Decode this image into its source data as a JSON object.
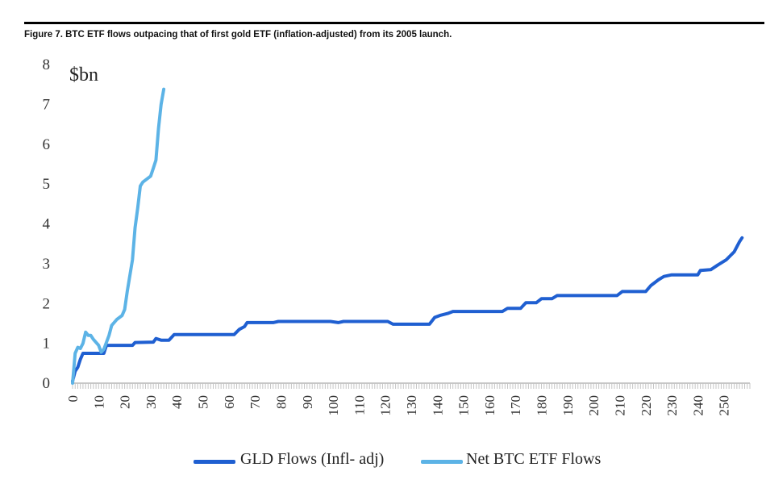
{
  "chart_data": {
    "type": "line",
    "title": "Figure 7. BTC ETF flows outpacing that of first gold ETF (inflation-adjusted) from its 2005 launch.",
    "unit_label": "$bn",
    "ylim": [
      0,
      8
    ],
    "yticks": [
      "0",
      "1",
      "2",
      "3",
      "4",
      "5",
      "6",
      "7",
      "8"
    ],
    "xlim": [
      0,
      260
    ],
    "xticks": [
      "0",
      "10",
      "20",
      "30",
      "40",
      "50",
      "60",
      "70",
      "80",
      "90",
      "100",
      "110",
      "120",
      "130",
      "140",
      "150",
      "160",
      "170",
      "180",
      "190",
      "200",
      "210",
      "220",
      "230",
      "240",
      "250"
    ],
    "grid": false,
    "legend_position": "bottom",
    "series": [
      {
        "name": "GLD Flows (Infl- adj)",
        "color": "#1f5fd1",
        "points": [
          [
            0,
            0.05
          ],
          [
            1,
            0.3
          ],
          [
            2,
            0.4
          ],
          [
            3,
            0.6
          ],
          [
            4,
            0.75
          ],
          [
            12,
            0.75
          ],
          [
            13,
            0.95
          ],
          [
            23,
            0.95
          ],
          [
            24,
            1.02
          ],
          [
            31,
            1.03
          ],
          [
            32,
            1.12
          ],
          [
            34,
            1.08
          ],
          [
            37,
            1.08
          ],
          [
            39,
            1.22
          ],
          [
            62,
            1.22
          ],
          [
            64,
            1.35
          ],
          [
            66,
            1.42
          ],
          [
            67,
            1.52
          ],
          [
            77,
            1.52
          ],
          [
            79,
            1.55
          ],
          [
            99,
            1.55
          ],
          [
            102,
            1.52
          ],
          [
            104,
            1.55
          ],
          [
            121,
            1.55
          ],
          [
            123,
            1.48
          ],
          [
            137,
            1.48
          ],
          [
            139,
            1.65
          ],
          [
            141,
            1.7
          ],
          [
            144,
            1.75
          ],
          [
            146,
            1.8
          ],
          [
            165,
            1.8
          ],
          [
            167,
            1.88
          ],
          [
            172,
            1.88
          ],
          [
            174,
            2.02
          ],
          [
            178,
            2.02
          ],
          [
            180,
            2.12
          ],
          [
            184,
            2.12
          ],
          [
            186,
            2.2
          ],
          [
            209,
            2.2
          ],
          [
            211,
            2.3
          ],
          [
            220,
            2.3
          ],
          [
            222,
            2.45
          ],
          [
            225,
            2.6
          ],
          [
            227,
            2.68
          ],
          [
            230,
            2.72
          ],
          [
            240,
            2.72
          ],
          [
            241,
            2.83
          ],
          [
            245,
            2.85
          ],
          [
            248,
            2.98
          ],
          [
            251,
            3.1
          ],
          [
            254,
            3.3
          ],
          [
            256,
            3.55
          ],
          [
            257,
            3.65
          ]
        ]
      },
      {
        "name": "Net BTC ETF Flows",
        "color": "#5cb3e6",
        "points": [
          [
            0,
            0.0
          ],
          [
            1,
            0.75
          ],
          [
            2,
            0.9
          ],
          [
            3,
            0.87
          ],
          [
            4,
            1.0
          ],
          [
            5,
            1.28
          ],
          [
            6,
            1.2
          ],
          [
            7,
            1.2
          ],
          [
            8,
            1.1
          ],
          [
            10,
            0.95
          ],
          [
            11,
            0.78
          ],
          [
            12,
            0.85
          ],
          [
            14,
            1.2
          ],
          [
            15,
            1.45
          ],
          [
            17,
            1.6
          ],
          [
            19,
            1.7
          ],
          [
            20,
            1.85
          ],
          [
            21,
            2.3
          ],
          [
            23,
            3.1
          ],
          [
            24,
            3.9
          ],
          [
            25,
            4.4
          ],
          [
            26,
            4.95
          ],
          [
            27,
            5.05
          ],
          [
            28,
            5.1
          ],
          [
            30,
            5.2
          ],
          [
            31,
            5.4
          ],
          [
            32,
            5.6
          ],
          [
            33,
            6.4
          ],
          [
            34,
            7.0
          ],
          [
            35,
            7.38
          ]
        ]
      }
    ]
  }
}
